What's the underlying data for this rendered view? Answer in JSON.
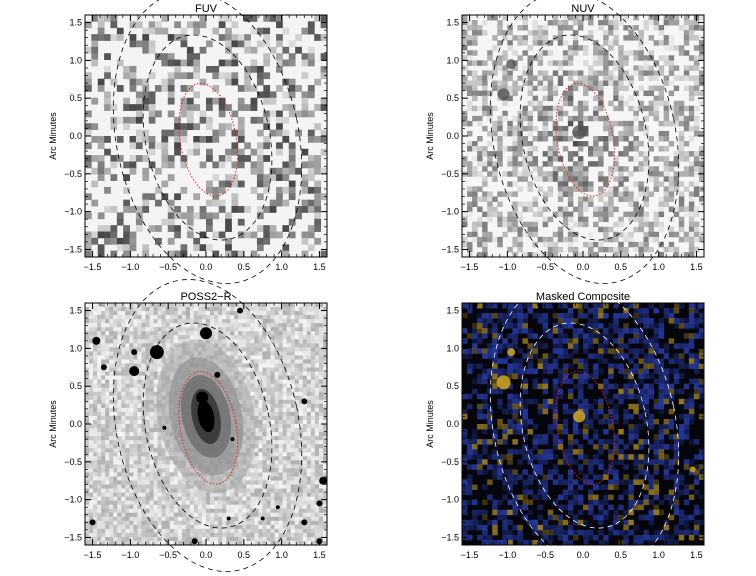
{
  "panels": [
    {
      "key": "fuv",
      "title": "FUV",
      "ylabel": "Arc Minutes",
      "style": "sparse-gray"
    },
    {
      "key": "nuv",
      "title": "NUV",
      "ylabel": "Arc Minutes",
      "style": "light-gray"
    },
    {
      "key": "poss",
      "title": "POSS2−R",
      "ylabel": "Arc Minutes",
      "style": "optical"
    },
    {
      "key": "comp",
      "title": "Masked Composite",
      "ylabel": "Arc Minutes",
      "style": "color"
    }
  ],
  "axes": {
    "range": [
      -1.6,
      1.6
    ],
    "xticks": [
      "−1.5",
      "−1.0",
      "−0.5",
      "0.0",
      "0.5",
      "1.0",
      "1.5"
    ],
    "yticks": [
      "−1.5",
      "−1.0",
      "−0.5",
      "0.0",
      "0.5",
      "1.0",
      "1.5"
    ],
    "tick_values": [
      -1.5,
      -1.0,
      -0.5,
      0.0,
      0.5,
      1.0,
      1.5
    ]
  },
  "ellipses": {
    "inner_color": "#e02020",
    "outer_color_dark": "#000000",
    "outer_color_light": "#ffffff",
    "composite_colors": [
      "#2a3fb0",
      "#c8a020"
    ]
  }
}
